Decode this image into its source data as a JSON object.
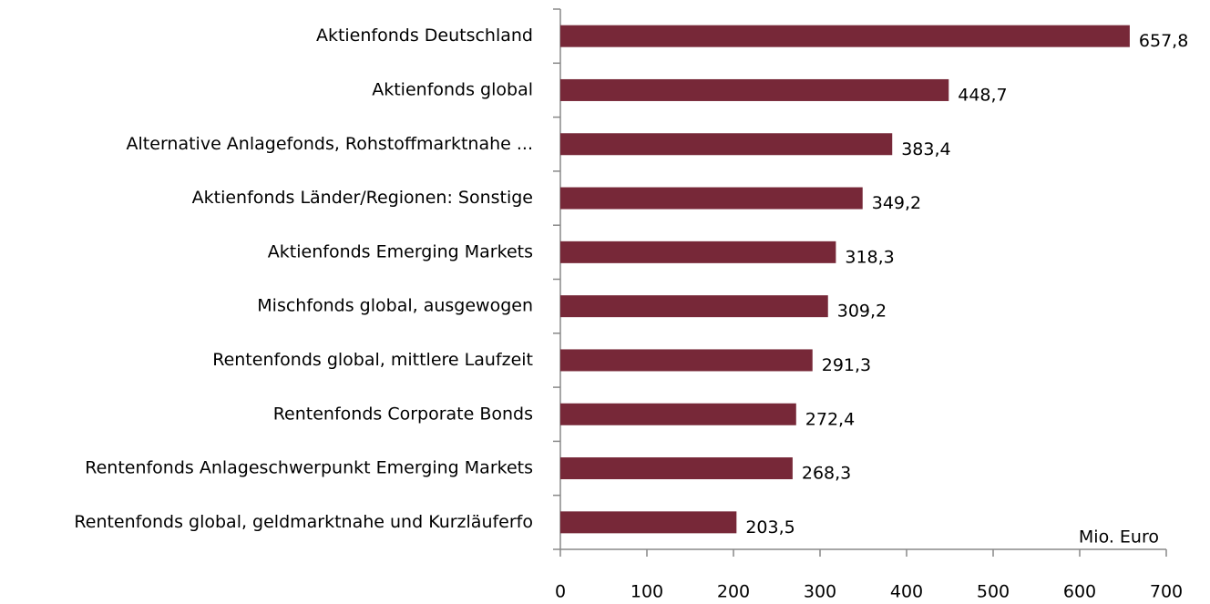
{
  "chart_data": {
    "type": "bar",
    "orientation": "horizontal",
    "categories": [
      "Aktienfonds Deutschland",
      "Aktienfonds global",
      "Alternative Anlagefonds, Rohstoffmarktnahe ...",
      "Aktienfonds Länder/Regionen: Sonstige",
      "Aktienfonds Emerging Markets",
      "Mischfonds global, ausgewogen",
      "Rentenfonds global, mittlere Laufzeit",
      "Rentenfonds Corporate Bonds",
      "Rentenfonds Anlageschwerpunkt Emerging Markets",
      "Rentenfonds global, geldmarktnahe und Kurzläuferfo"
    ],
    "values": [
      657.8,
      448.7,
      383.4,
      349.2,
      318.3,
      309.2,
      291.3,
      272.4,
      268.3,
      203.5
    ],
    "value_labels": [
      "657,8",
      "448,7",
      "383,4",
      "349,2",
      "318,3",
      "309,2",
      "291,3",
      "272,4",
      "268,3",
      "203,5"
    ],
    "color": "#772838",
    "xlim": [
      0,
      700
    ],
    "xticks": [
      0,
      100,
      200,
      300,
      400,
      500,
      600,
      700
    ],
    "annotation": "Mio. Euro"
  }
}
